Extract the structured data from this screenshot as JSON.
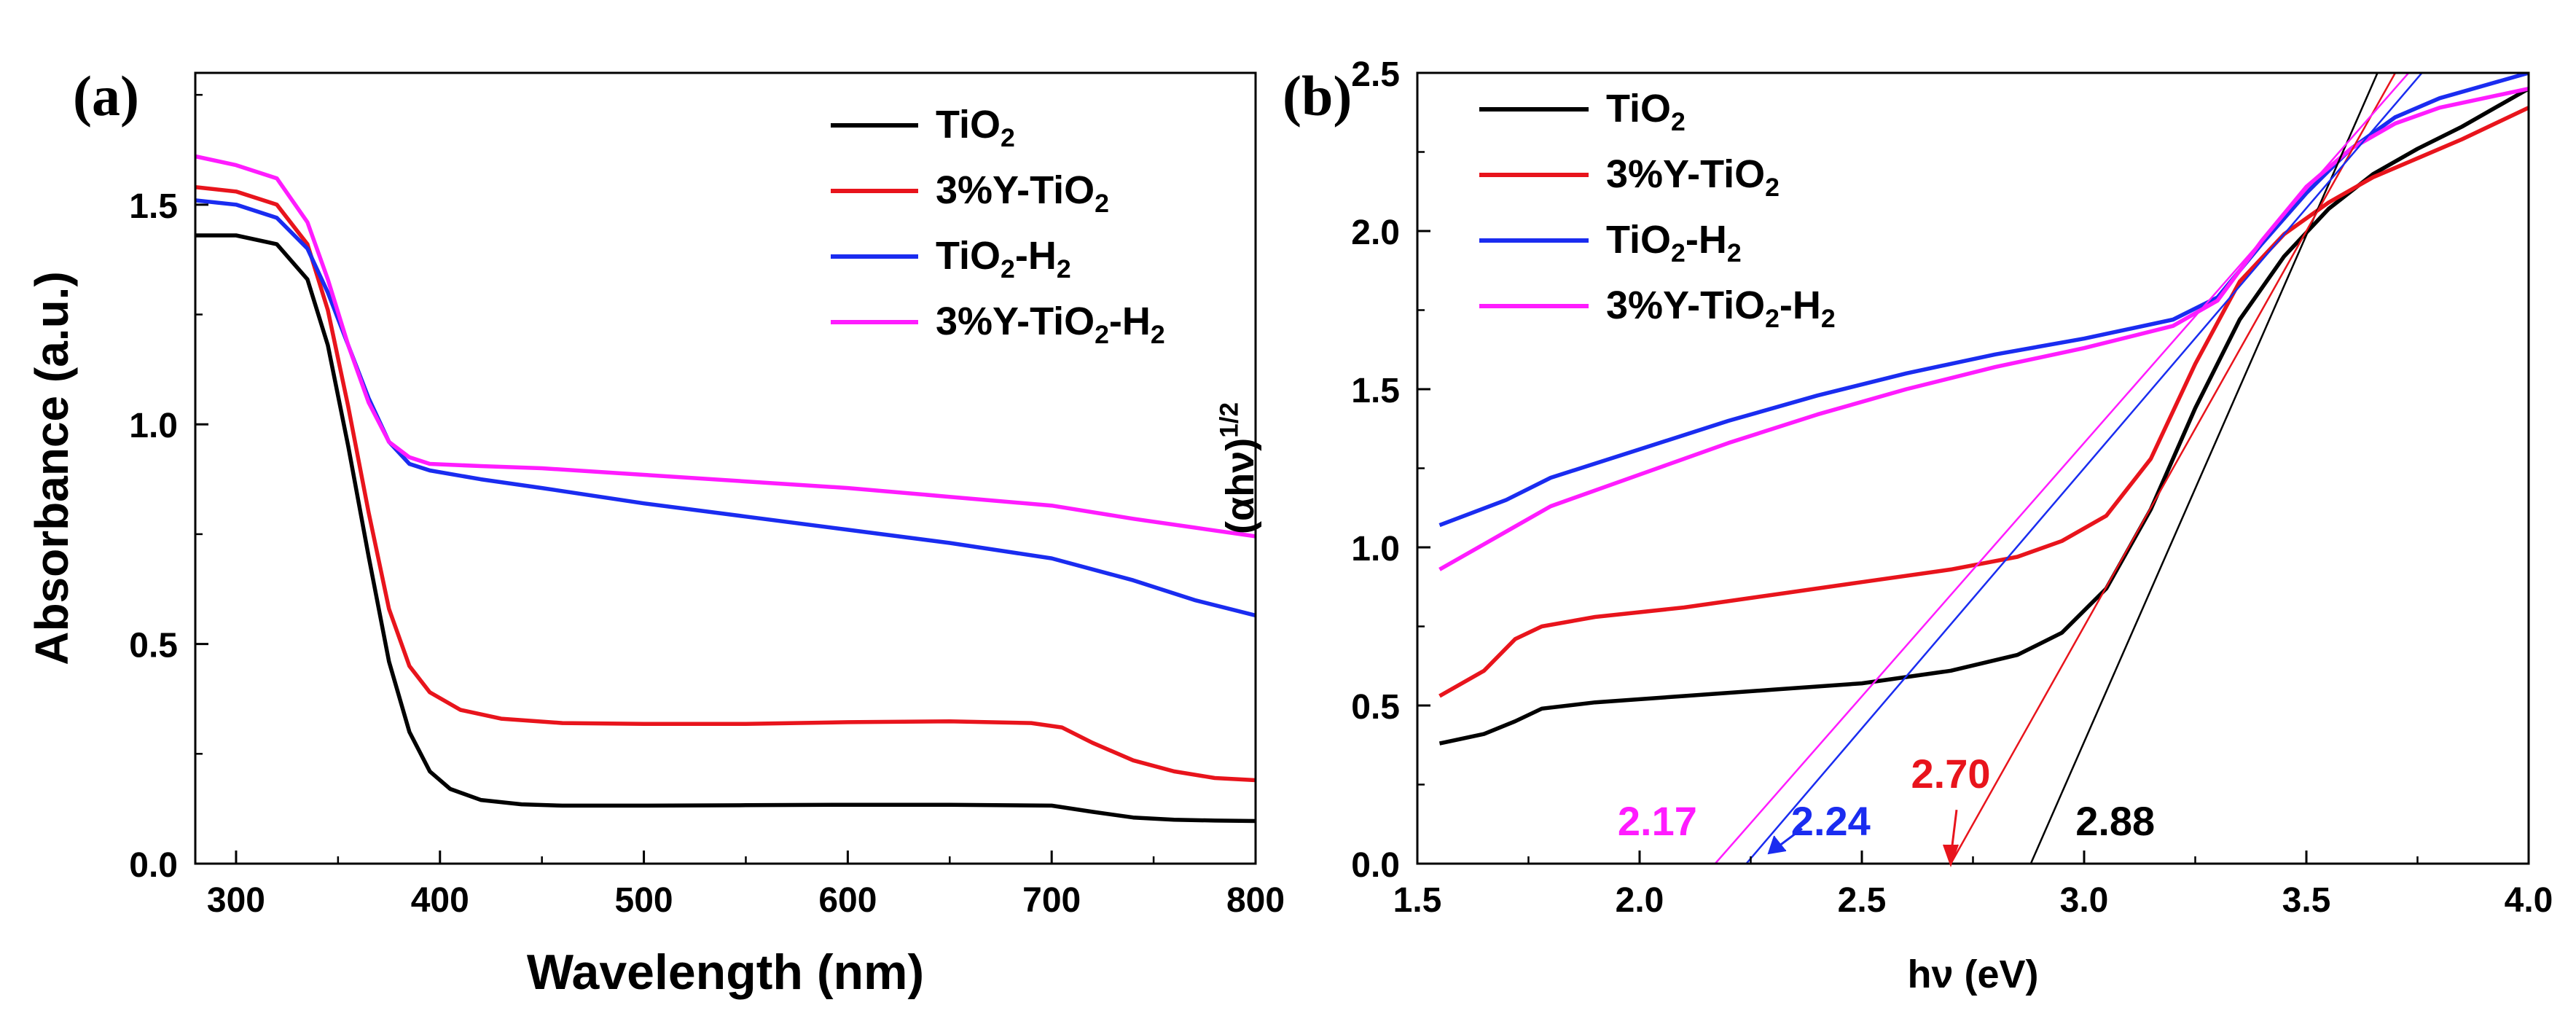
{
  "figure": {
    "panels": [
      "(a)",
      "(b)"
    ]
  },
  "chart_data": [
    {
      "type": "line",
      "panel": "(a)",
      "title": "",
      "xlabel": "Wavelength (nm)",
      "ylabel": "Absorbance (a.u.)",
      "xlim": [
        280,
        800
      ],
      "ylim": [
        0.0,
        1.8
      ],
      "xticks": [
        300,
        400,
        500,
        600,
        700,
        800
      ],
      "xtick_labels": [
        "300",
        "400",
        "500",
        "600",
        "700",
        "800"
      ],
      "yticks": [
        0.0,
        0.5,
        1.0,
        1.5
      ],
      "ytick_labels": [
        "0.0",
        "0.5",
        "1.0",
        "1.5"
      ],
      "legend_position": "top-right",
      "series": [
        {
          "name": "TiO2",
          "label_main": "TiO",
          "label_parts": [
            {
              "t": "TiO",
              "s": false
            },
            {
              "t": "2",
              "s": true
            }
          ],
          "color": "#000000",
          "x": [
            280,
            300,
            320,
            335,
            345,
            355,
            365,
            375,
            385,
            395,
            405,
            420,
            440,
            460,
            500,
            550,
            600,
            650,
            700,
            720,
            740,
            760,
            780,
            800
          ],
          "y": [
            1.43,
            1.43,
            1.41,
            1.33,
            1.18,
            0.95,
            0.7,
            0.46,
            0.3,
            0.21,
            0.17,
            0.145,
            0.135,
            0.132,
            0.132,
            0.133,
            0.134,
            0.134,
            0.132,
            0.118,
            0.105,
            0.1,
            0.098,
            0.097
          ]
        },
        {
          "name": "3%Y-TiO2",
          "label_parts": [
            {
              "t": "3%Y-TiO",
              "s": false
            },
            {
              "t": "2",
              "s": true
            }
          ],
          "color": "#e8141c",
          "x": [
            280,
            300,
            320,
            335,
            345,
            355,
            365,
            375,
            385,
            395,
            410,
            430,
            460,
            500,
            550,
            600,
            650,
            690,
            705,
            720,
            740,
            760,
            780,
            800
          ],
          "y": [
            1.54,
            1.53,
            1.5,
            1.41,
            1.26,
            1.04,
            0.8,
            0.58,
            0.45,
            0.39,
            0.35,
            0.33,
            0.32,
            0.318,
            0.318,
            0.322,
            0.324,
            0.32,
            0.31,
            0.275,
            0.235,
            0.21,
            0.195,
            0.19
          ]
        },
        {
          "name": "TiO2-H2",
          "label_parts": [
            {
              "t": "TiO",
              "s": false
            },
            {
              "t": "2",
              "s": true
            },
            {
              "t": "-H",
              "s": false
            },
            {
              "t": "2",
              "s": true
            }
          ],
          "color": "#1a2cf0",
          "x": [
            280,
            300,
            320,
            335,
            345,
            355,
            365,
            375,
            385,
            395,
            420,
            450,
            500,
            550,
            600,
            650,
            700,
            740,
            770,
            800
          ],
          "y": [
            1.51,
            1.5,
            1.47,
            1.4,
            1.3,
            1.18,
            1.06,
            0.96,
            0.91,
            0.895,
            0.875,
            0.855,
            0.82,
            0.79,
            0.76,
            0.73,
            0.695,
            0.645,
            0.6,
            0.565
          ]
        },
        {
          "name": "3%Y-TiO2-H2",
          "label_parts": [
            {
              "t": "3%Y-TiO",
              "s": false
            },
            {
              "t": "2",
              "s": true
            },
            {
              "t": "-H",
              "s": false
            },
            {
              "t": "2",
              "s": true
            }
          ],
          "color": "#ff1cff",
          "x": [
            280,
            300,
            320,
            335,
            345,
            355,
            365,
            375,
            385,
            395,
            420,
            450,
            500,
            550,
            600,
            650,
            700,
            740,
            770,
            800
          ],
          "y": [
            1.61,
            1.59,
            1.56,
            1.46,
            1.33,
            1.18,
            1.05,
            0.96,
            0.925,
            0.91,
            0.905,
            0.9,
            0.885,
            0.87,
            0.855,
            0.835,
            0.815,
            0.785,
            0.765,
            0.745
          ]
        }
      ]
    },
    {
      "type": "line",
      "panel": "(b)",
      "title": "",
      "xlabel": "hν (eV)",
      "ylabel_main": "(αhν)",
      "ylabel_sup": "1/2",
      "xlim": [
        1.5,
        4.0
      ],
      "ylim": [
        0.0,
        2.5
      ],
      "xticks": [
        1.5,
        2.0,
        2.5,
        3.0,
        3.5,
        4.0
      ],
      "xtick_labels": [
        "1.5",
        "2.0",
        "2.5",
        "3.0",
        "3.5",
        "4.0"
      ],
      "yticks": [
        0.0,
        0.5,
        1.0,
        1.5,
        2.0,
        2.5
      ],
      "ytick_labels": [
        "0.0",
        "0.5",
        "1.0",
        "1.5",
        "2.0",
        "2.5"
      ],
      "legend_position": "top-left",
      "series": [
        {
          "name": "TiO2",
          "label_parts": [
            {
              "t": "TiO",
              "s": false
            },
            {
              "t": "2",
              "s": true
            }
          ],
          "color": "#000000",
          "x": [
            1.55,
            1.65,
            1.72,
            1.78,
            1.9,
            2.1,
            2.3,
            2.5,
            2.7,
            2.85,
            2.95,
            3.05,
            3.15,
            3.25,
            3.35,
            3.45,
            3.55,
            3.65,
            3.75,
            3.85,
            4.0
          ],
          "y": [
            0.38,
            0.41,
            0.45,
            0.49,
            0.51,
            0.53,
            0.55,
            0.57,
            0.61,
            0.66,
            0.73,
            0.87,
            1.12,
            1.44,
            1.72,
            1.92,
            2.07,
            2.18,
            2.26,
            2.33,
            2.45
          ]
        },
        {
          "name": "3%Y-TiO2",
          "label_parts": [
            {
              "t": "3%Y-TiO",
              "s": false
            },
            {
              "t": "2",
              "s": true
            }
          ],
          "color": "#e8141c",
          "x": [
            1.55,
            1.65,
            1.72,
            1.78,
            1.9,
            2.1,
            2.3,
            2.5,
            2.7,
            2.85,
            2.95,
            3.05,
            3.15,
            3.25,
            3.35,
            3.45,
            3.55,
            3.65,
            3.75,
            3.85,
            4.0
          ],
          "y": [
            0.53,
            0.61,
            0.71,
            0.75,
            0.78,
            0.81,
            0.85,
            0.89,
            0.93,
            0.97,
            1.02,
            1.1,
            1.28,
            1.58,
            1.84,
            1.99,
            2.09,
            2.17,
            2.23,
            2.29,
            2.39
          ]
        },
        {
          "name": "TiO2-H2",
          "label_parts": [
            {
              "t": "TiO",
              "s": false
            },
            {
              "t": "2",
              "s": true
            },
            {
              "t": "-H",
              "s": false
            },
            {
              "t": "2",
              "s": true
            }
          ],
          "color": "#1a2cf0",
          "x": [
            1.55,
            1.7,
            1.8,
            2.0,
            2.2,
            2.4,
            2.6,
            2.8,
            3.0,
            3.2,
            3.3,
            3.4,
            3.5,
            3.6,
            3.7,
            3.8,
            3.9,
            4.0
          ],
          "y": [
            1.07,
            1.15,
            1.22,
            1.31,
            1.4,
            1.48,
            1.55,
            1.61,
            1.66,
            1.72,
            1.79,
            1.96,
            2.12,
            2.26,
            2.36,
            2.42,
            2.46,
            2.5
          ]
        },
        {
          "name": "3%Y-TiO2-H2",
          "label_parts": [
            {
              "t": "3%Y-TiO",
              "s": false
            },
            {
              "t": "2",
              "s": true
            },
            {
              "t": "-H",
              "s": false
            },
            {
              "t": "2",
              "s": true
            }
          ],
          "color": "#ff1cff",
          "x": [
            1.55,
            1.7,
            1.8,
            2.0,
            2.2,
            2.4,
            2.6,
            2.8,
            3.0,
            3.2,
            3.3,
            3.4,
            3.5,
            3.6,
            3.7,
            3.8,
            3.9,
            4.0
          ],
          "y": [
            0.93,
            1.05,
            1.13,
            1.23,
            1.33,
            1.42,
            1.5,
            1.57,
            1.63,
            1.7,
            1.78,
            1.97,
            2.14,
            2.26,
            2.34,
            2.39,
            2.42,
            2.45
          ]
        }
      ],
      "tangent_lines": [
        {
          "name": "TiO2 tangent",
          "color": "#000000",
          "x0": 2.88,
          "x1": 3.66,
          "y0": 0.0,
          "y1": 2.5
        },
        {
          "name": "3%Y-TiO2 tangent",
          "color": "#e8141c",
          "x0": 2.7,
          "x1": 3.7,
          "y0": 0.0,
          "y1": 2.5
        },
        {
          "name": "TiO2-H2 tangent",
          "color": "#1a2cf0",
          "x0": 2.24,
          "x1": 3.76,
          "y0": 0.0,
          "y1": 2.5
        },
        {
          "name": "3%Y-TiO2-H2 tangent",
          "color": "#ff1cff",
          "x0": 2.17,
          "x1": 3.73,
          "y0": 0.0,
          "y1": 2.5
        }
      ],
      "annotations": [
        {
          "text": "2.17",
          "color": "#ff1cff",
          "x": 2.04,
          "y": 0.09
        },
        {
          "text": "2.24",
          "color": "#1a2cf0",
          "x": 2.43,
          "y": 0.09
        },
        {
          "text": "2.70",
          "color": "#e8141c",
          "x": 2.7,
          "y": 0.24
        },
        {
          "text": "2.88",
          "color": "#000000",
          "x": 3.07,
          "y": 0.09
        }
      ]
    }
  ]
}
